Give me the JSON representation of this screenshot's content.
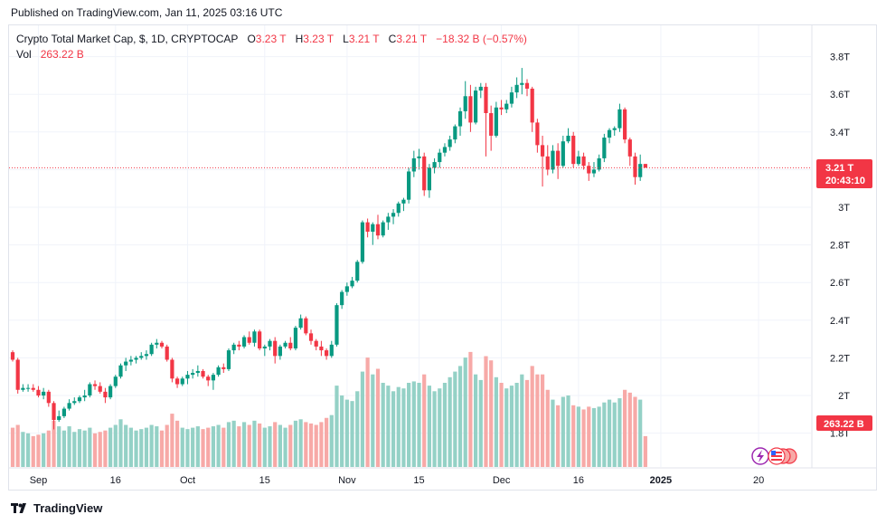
{
  "published": "Published on TradingView.com, Jan 11, 2025 03:16 UTC",
  "legend": {
    "symbol": "Crypto Total Market Cap, $, 1D, CRYPTOCAP",
    "o_label": "O",
    "o_value": "3.23 T",
    "h_label": "H",
    "h_value": "3.23 T",
    "l_label": "L",
    "l_value": "3.21 T",
    "c_label": "C",
    "c_value": "3.21 T",
    "change": "−18.32 B (−0.57%)",
    "vol_label": "Vol",
    "vol_value": "263.22 B"
  },
  "price_tag": {
    "price": "3.21 T",
    "countdown": "20:43:10"
  },
  "volume_tag": "263.22 B",
  "footer": {
    "brand": "TradingView"
  },
  "colors": {
    "up": "#089981",
    "down": "#f23645",
    "up_volume": "#94d1c6",
    "down_volume": "#f7a9a7",
    "grid": "#f0f3fa"
  },
  "chart_data": {
    "type": "candlestick",
    "y_axis": {
      "ticks": [
        1.8,
        2.0,
        2.2,
        2.4,
        2.6,
        2.8,
        3.0,
        3.2,
        3.4,
        3.6,
        3.8
      ],
      "tick_labels": [
        "1.8T",
        "2T",
        "2.2T",
        "2.4T",
        "2.6T",
        "2.8T",
        "3T",
        "",
        "3.4T",
        "3.6T",
        "3.8T"
      ],
      "unit": "T"
    },
    "x_axis": {
      "ticks": [
        {
          "day": 5,
          "label": "Sep",
          "bold": false
        },
        {
          "day": 20,
          "label": "16",
          "bold": false
        },
        {
          "day": 34,
          "label": "Oct",
          "bold": false
        },
        {
          "day": 49,
          "label": "15",
          "bold": false
        },
        {
          "day": 65,
          "label": "Nov",
          "bold": false
        },
        {
          "day": 79,
          "label": "15",
          "bold": false
        },
        {
          "day": 95,
          "label": "Dec",
          "bold": false
        },
        {
          "day": 110,
          "label": "16",
          "bold": false
        },
        {
          "day": 126,
          "label": "2025",
          "bold": true
        },
        {
          "day": 145,
          "label": "20",
          "bold": false
        }
      ]
    },
    "last_price": 3.21,
    "candles": [
      [
        2.23,
        2.24,
        2.18,
        2.19,
        140
      ],
      [
        2.19,
        2.2,
        2.01,
        2.03,
        150
      ],
      [
        2.03,
        2.06,
        2.02,
        2.04,
        125
      ],
      [
        2.04,
        2.06,
        2.02,
        2.04,
        120
      ],
      [
        2.04,
        2.06,
        2.02,
        2.03,
        110
      ],
      [
        2.03,
        2.05,
        1.99,
        2.0,
        115
      ],
      [
        2.0,
        2.04,
        1.98,
        2.02,
        120
      ],
      [
        2.02,
        2.03,
        1.94,
        1.96,
        130
      ],
      [
        1.96,
        1.97,
        1.82,
        1.87,
        165
      ],
      [
        1.87,
        1.92,
        1.86,
        1.89,
        145
      ],
      [
        1.89,
        1.94,
        1.88,
        1.93,
        130
      ],
      [
        1.93,
        1.98,
        1.92,
        1.96,
        145
      ],
      [
        1.96,
        1.99,
        1.95,
        1.97,
        125
      ],
      [
        1.97,
        2.0,
        1.96,
        1.99,
        135
      ],
      [
        1.99,
        2.03,
        1.97,
        2.0,
        130
      ],
      [
        2.0,
        2.07,
        1.99,
        2.06,
        140
      ],
      [
        2.06,
        2.08,
        2.03,
        2.05,
        120
      ],
      [
        2.05,
        2.07,
        2.01,
        2.02,
        125
      ],
      [
        2.02,
        2.04,
        1.96,
        1.99,
        130
      ],
      [
        1.99,
        2.06,
        1.98,
        2.05,
        140
      ],
      [
        2.05,
        2.11,
        2.04,
        2.1,
        150
      ],
      [
        2.1,
        2.17,
        2.09,
        2.16,
        170
      ],
      [
        2.16,
        2.2,
        2.13,
        2.18,
        150
      ],
      [
        2.18,
        2.21,
        2.16,
        2.19,
        140
      ],
      [
        2.19,
        2.21,
        2.17,
        2.2,
        130
      ],
      [
        2.2,
        2.23,
        2.19,
        2.21,
        135
      ],
      [
        2.21,
        2.24,
        2.19,
        2.22,
        140
      ],
      [
        2.22,
        2.28,
        2.21,
        2.27,
        150
      ],
      [
        2.27,
        2.3,
        2.25,
        2.28,
        145
      ],
      [
        2.28,
        2.29,
        2.25,
        2.26,
        130
      ],
      [
        2.26,
        2.27,
        2.18,
        2.19,
        150
      ],
      [
        2.19,
        2.2,
        2.07,
        2.09,
        190
      ],
      [
        2.09,
        2.1,
        2.04,
        2.06,
        165
      ],
      [
        2.06,
        2.1,
        2.05,
        2.09,
        140
      ],
      [
        2.09,
        2.13,
        2.06,
        2.11,
        135
      ],
      [
        2.11,
        2.14,
        2.09,
        2.12,
        140
      ],
      [
        2.12,
        2.16,
        2.1,
        2.13,
        145
      ],
      [
        2.13,
        2.14,
        2.09,
        2.1,
        135
      ],
      [
        2.1,
        2.11,
        2.05,
        2.08,
        140
      ],
      [
        2.08,
        2.12,
        2.03,
        2.11,
        145
      ],
      [
        2.11,
        2.16,
        2.1,
        2.15,
        150
      ],
      [
        2.15,
        2.17,
        2.12,
        2.14,
        140
      ],
      [
        2.14,
        2.25,
        2.13,
        2.24,
        160
      ],
      [
        2.24,
        2.28,
        2.22,
        2.27,
        165
      ],
      [
        2.27,
        2.29,
        2.24,
        2.26,
        145
      ],
      [
        2.26,
        2.32,
        2.25,
        2.31,
        160
      ],
      [
        2.31,
        2.34,
        2.27,
        2.28,
        150
      ],
      [
        2.28,
        2.35,
        2.26,
        2.34,
        165
      ],
      [
        2.34,
        2.35,
        2.24,
        2.25,
        155
      ],
      [
        2.25,
        2.27,
        2.21,
        2.26,
        140
      ],
      [
        2.26,
        2.3,
        2.24,
        2.29,
        145
      ],
      [
        2.29,
        2.31,
        2.17,
        2.21,
        160
      ],
      [
        2.21,
        2.27,
        2.19,
        2.26,
        150
      ],
      [
        2.26,
        2.29,
        2.25,
        2.28,
        140
      ],
      [
        2.28,
        2.31,
        2.24,
        2.25,
        150
      ],
      [
        2.25,
        2.37,
        2.24,
        2.36,
        165
      ],
      [
        2.36,
        2.43,
        2.35,
        2.41,
        170
      ],
      [
        2.41,
        2.42,
        2.32,
        2.33,
        160
      ],
      [
        2.33,
        2.35,
        2.27,
        2.29,
        155
      ],
      [
        2.29,
        2.3,
        2.24,
        2.26,
        150
      ],
      [
        2.26,
        2.29,
        2.21,
        2.24,
        160
      ],
      [
        2.24,
        2.25,
        2.19,
        2.21,
        175
      ],
      [
        2.21,
        2.29,
        2.2,
        2.27,
        185
      ],
      [
        2.27,
        2.49,
        2.26,
        2.48,
        290
      ],
      [
        2.48,
        2.56,
        2.46,
        2.55,
        255
      ],
      [
        2.55,
        2.6,
        2.53,
        2.58,
        240
      ],
      [
        2.58,
        2.63,
        2.57,
        2.61,
        235
      ],
      [
        2.61,
        2.72,
        2.6,
        2.71,
        270
      ],
      [
        2.71,
        2.93,
        2.7,
        2.92,
        340
      ],
      [
        2.92,
        2.94,
        2.84,
        2.87,
        390
      ],
      [
        2.87,
        2.92,
        2.8,
        2.91,
        330
      ],
      [
        2.91,
        2.96,
        2.83,
        2.85,
        350
      ],
      [
        2.85,
        2.93,
        2.84,
        2.92,
        300
      ],
      [
        2.92,
        2.97,
        2.88,
        2.95,
        290
      ],
      [
        2.95,
        2.99,
        2.91,
        2.97,
        270
      ],
      [
        2.97,
        3.03,
        2.95,
        3.02,
        285
      ],
      [
        3.02,
        3.05,
        2.98,
        3.04,
        280
      ],
      [
        3.04,
        3.21,
        3.02,
        3.19,
        300
      ],
      [
        3.19,
        3.3,
        3.16,
        3.26,
        305
      ],
      [
        3.26,
        3.31,
        3.2,
        3.27,
        300
      ],
      [
        3.27,
        3.29,
        3.06,
        3.09,
        330
      ],
      [
        3.09,
        3.23,
        3.05,
        3.21,
        290
      ],
      [
        3.21,
        3.26,
        3.18,
        3.24,
        270
      ],
      [
        3.24,
        3.31,
        3.21,
        3.29,
        280
      ],
      [
        3.29,
        3.34,
        3.27,
        3.32,
        300
      ],
      [
        3.32,
        3.38,
        3.3,
        3.36,
        320
      ],
      [
        3.36,
        3.44,
        3.34,
        3.43,
        340
      ],
      [
        3.43,
        3.53,
        3.38,
        3.51,
        360
      ],
      [
        3.51,
        3.67,
        3.47,
        3.59,
        390
      ],
      [
        3.59,
        3.65,
        3.4,
        3.45,
        410
      ],
      [
        3.45,
        3.64,
        3.44,
        3.62,
        330
      ],
      [
        3.62,
        3.66,
        3.58,
        3.64,
        310
      ],
      [
        3.64,
        3.66,
        3.27,
        3.5,
        395
      ],
      [
        3.5,
        3.54,
        3.3,
        3.38,
        380
      ],
      [
        3.38,
        3.56,
        3.37,
        3.53,
        320
      ],
      [
        3.53,
        3.57,
        3.49,
        3.52,
        300
      ],
      [
        3.52,
        3.57,
        3.5,
        3.55,
        280
      ],
      [
        3.55,
        3.64,
        3.53,
        3.61,
        290
      ],
      [
        3.61,
        3.69,
        3.58,
        3.65,
        300
      ],
      [
        3.65,
        3.74,
        3.6,
        3.66,
        330
      ],
      [
        3.66,
        3.68,
        3.59,
        3.63,
        310
      ],
      [
        3.63,
        3.64,
        3.4,
        3.45,
        360
      ],
      [
        3.45,
        3.47,
        3.29,
        3.33,
        330
      ],
      [
        3.33,
        3.38,
        3.11,
        3.27,
        330
      ],
      [
        3.27,
        3.33,
        3.17,
        3.2,
        275
      ],
      [
        3.2,
        3.33,
        3.18,
        3.3,
        240
      ],
      [
        3.3,
        3.34,
        3.15,
        3.22,
        220
      ],
      [
        3.22,
        3.38,
        3.21,
        3.35,
        250
      ],
      [
        3.35,
        3.42,
        3.34,
        3.38,
        255
      ],
      [
        3.38,
        3.4,
        3.21,
        3.23,
        220
      ],
      [
        3.23,
        3.3,
        3.22,
        3.27,
        215
      ],
      [
        3.27,
        3.29,
        3.2,
        3.22,
        205
      ],
      [
        3.22,
        3.24,
        3.14,
        3.18,
        215
      ],
      [
        3.18,
        3.24,
        3.16,
        3.2,
        210
      ],
      [
        3.2,
        3.28,
        3.19,
        3.26,
        215
      ],
      [
        3.26,
        3.39,
        3.24,
        3.37,
        230
      ],
      [
        3.37,
        3.42,
        3.34,
        3.41,
        240
      ],
      [
        3.41,
        3.43,
        3.38,
        3.42,
        230
      ],
      [
        3.42,
        3.55,
        3.4,
        3.52,
        245
      ],
      [
        3.52,
        3.53,
        3.34,
        3.36,
        275
      ],
      [
        3.36,
        3.37,
        3.22,
        3.27,
        265
      ],
      [
        3.27,
        3.29,
        3.12,
        3.16,
        250
      ],
      [
        3.16,
        3.28,
        3.14,
        3.23,
        240
      ],
      [
        3.23,
        3.23,
        3.21,
        3.21,
        110
      ]
    ]
  }
}
